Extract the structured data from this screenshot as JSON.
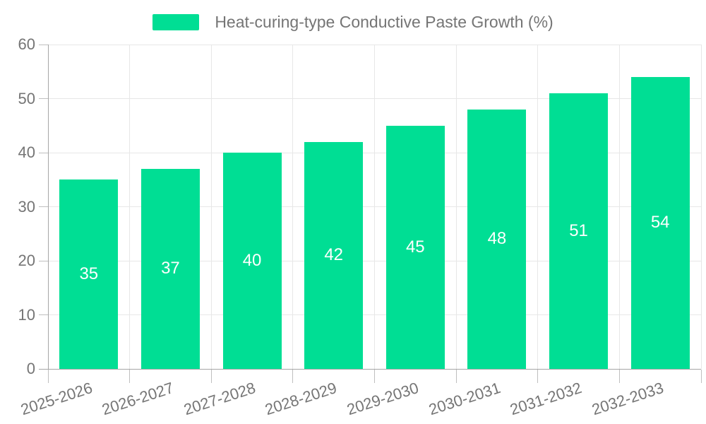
{
  "legend": {
    "label": "Heat-curing-type Conductive Paste Growth (%)"
  },
  "chart_data": {
    "type": "bar",
    "title": "Heat-curing-type Conductive Paste Growth (%)",
    "categories": [
      "2025-2026",
      "2026-2027",
      "2027-2028",
      "2028-2029",
      "2029-2030",
      "2030-2031",
      "2031-2032",
      "2032-2033"
    ],
    "values": [
      35,
      37,
      40,
      42,
      45,
      48,
      51,
      54
    ],
    "xlabel": "",
    "ylabel": "",
    "ylim": [
      0,
      60
    ],
    "yticks": [
      0,
      10,
      20,
      30,
      40,
      50,
      60
    ],
    "grid": true,
    "legend_position": "top-center",
    "bar_color": "#00DE94",
    "value_label_color": "#FFFFFF",
    "axis_text_color": "#757575"
  }
}
